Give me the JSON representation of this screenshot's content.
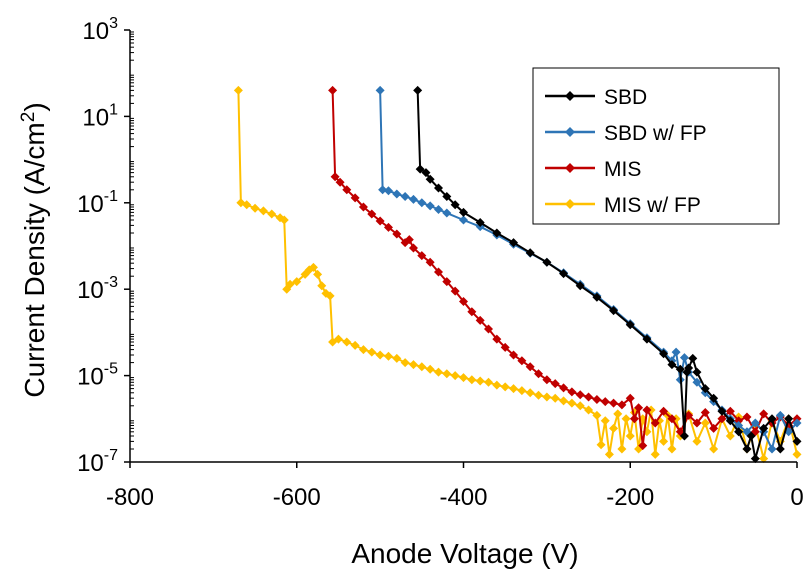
{
  "chart_data": {
    "type": "scatter",
    "xlabel": "Anode Voltage (V)",
    "ylabel": "Current Density (A/cm",
    "ylabel_sup": "2",
    "ylabel_close": ")",
    "xlim": [
      -800,
      0
    ],
    "ylim": [
      1e-07,
      1000
    ],
    "yscale": "log",
    "grid": false,
    "legend_position": "top-right",
    "x_ticks": [
      -800,
      -600,
      -400,
      -200,
      0
    ],
    "x_tick_labels": [
      "-800",
      "-600",
      "-400",
      "-200",
      "0"
    ],
    "y_ticks": [
      {
        "value": 1000.0,
        "base": "10",
        "exp": "3"
      },
      {
        "value": 10.0,
        "base": "10",
        "exp": "1"
      },
      {
        "value": 0.1,
        "base": "10",
        "exp": "-1"
      },
      {
        "value": 0.001,
        "base": "10",
        "exp": "-3"
      },
      {
        "value": 1e-05,
        "base": "10",
        "exp": "-5"
      },
      {
        "value": 1e-07,
        "base": "10",
        "exp": "-7"
      }
    ],
    "series": [
      {
        "name": "SBD",
        "color": "#000000",
        "points": [
          [
            -455,
            40
          ],
          [
            -452,
            0.6
          ],
          [
            -445,
            0.5
          ],
          [
            -440,
            0.35
          ],
          [
            -430,
            0.22
          ],
          [
            -420,
            0.14
          ],
          [
            -410,
            0.09
          ],
          [
            -400,
            0.06
          ],
          [
            -380,
            0.035
          ],
          [
            -360,
            0.02
          ],
          [
            -340,
            0.012
          ],
          [
            -320,
            0.007
          ],
          [
            -300,
            0.0042
          ],
          [
            -280,
            0.0023
          ],
          [
            -260,
            0.0012
          ],
          [
            -240,
            0.00065
          ],
          [
            -220,
            0.00032
          ],
          [
            -200,
            0.00015
          ],
          [
            -180,
            7e-05
          ],
          [
            -160,
            3.2e-05
          ],
          [
            -150,
            1.8e-05
          ],
          [
            -140,
            1.4e-05
          ],
          [
            -135,
            4e-07
          ],
          [
            -132,
            1.2e-05
          ],
          [
            -130,
            1.5e-05
          ],
          [
            -125,
            2.5e-05
          ],
          [
            -120,
            1.2e-05
          ],
          [
            -110,
            5e-06
          ],
          [
            -100,
            3e-06
          ],
          [
            -90,
            1.5e-06
          ],
          [
            -80,
            9e-07
          ],
          [
            -70,
            5e-07
          ],
          [
            -60,
            2e-07
          ],
          [
            -55,
            4e-07
          ],
          [
            -50,
            1.2e-07
          ],
          [
            -40,
            6e-07
          ],
          [
            -30,
            1e-06
          ],
          [
            -20,
            2e-07
          ],
          [
            -10,
            1e-06
          ],
          [
            0,
            3e-07
          ]
        ]
      },
      {
        "name": "SBD w/ FP",
        "color": "#2e75b6",
        "points": [
          [
            -500,
            40
          ],
          [
            -497,
            0.2
          ],
          [
            -490,
            0.19
          ],
          [
            -480,
            0.16
          ],
          [
            -470,
            0.14
          ],
          [
            -460,
            0.12
          ],
          [
            -450,
            0.1
          ],
          [
            -440,
            0.085
          ],
          [
            -430,
            0.07
          ],
          [
            -420,
            0.058
          ],
          [
            -400,
            0.04
          ],
          [
            -380,
            0.028
          ],
          [
            -360,
            0.018
          ],
          [
            -340,
            0.011
          ],
          [
            -320,
            0.0068
          ],
          [
            -300,
            0.0042
          ],
          [
            -280,
            0.0024
          ],
          [
            -260,
            0.0013
          ],
          [
            -240,
            0.0007
          ],
          [
            -220,
            0.00034
          ],
          [
            -200,
            0.00016
          ],
          [
            -180,
            7.5e-05
          ],
          [
            -160,
            3.5e-05
          ],
          [
            -150,
            2.2e-05
          ],
          [
            -145,
            3.5e-05
          ],
          [
            -140,
            8e-06
          ],
          [
            -135,
            2.6e-05
          ],
          [
            -130,
            1.2e-05
          ],
          [
            -120,
            7e-06
          ],
          [
            -110,
            4e-06
          ],
          [
            -100,
            2.5e-06
          ],
          [
            -90,
            1.6e-06
          ],
          [
            -80,
            1e-06
          ],
          [
            -70,
            7e-07
          ],
          [
            -60,
            5e-07
          ],
          [
            -50,
            8e-07
          ],
          [
            -40,
            5e-07
          ],
          [
            -30,
            2e-07
          ],
          [
            -20,
            1.2e-06
          ],
          [
            -10,
            5e-07
          ],
          [
            0,
            8e-07
          ]
        ]
      },
      {
        "name": "MIS",
        "color": "#c00000",
        "points": [
          [
            -557,
            40
          ],
          [
            -554,
            0.4
          ],
          [
            -548,
            0.3
          ],
          [
            -540,
            0.2
          ],
          [
            -530,
            0.13
          ],
          [
            -520,
            0.08
          ],
          [
            -510,
            0.055
          ],
          [
            -500,
            0.038
          ],
          [
            -490,
            0.027
          ],
          [
            -480,
            0.019
          ],
          [
            -470,
            0.012
          ],
          [
            -465,
            0.014
          ],
          [
            -460,
            0.009
          ],
          [
            -450,
            0.006
          ],
          [
            -440,
            0.0042
          ],
          [
            -430,
            0.0025
          ],
          [
            -420,
            0.0015
          ],
          [
            -410,
            0.0009
          ],
          [
            -400,
            0.00052
          ],
          [
            -390,
            0.0003
          ],
          [
            -380,
            0.00019
          ],
          [
            -370,
            0.00012
          ],
          [
            -360,
            7e-05
          ],
          [
            -350,
            4.5e-05
          ],
          [
            -340,
            3e-05
          ],
          [
            -330,
            2.2e-05
          ],
          [
            -320,
            1.6e-05
          ],
          [
            -310,
            1.1e-05
          ],
          [
            -300,
            8e-06
          ],
          [
            -290,
            6.5e-06
          ],
          [
            -280,
            5.2e-06
          ],
          [
            -270,
            4.2e-06
          ],
          [
            -260,
            3.6e-06
          ],
          [
            -250,
            3.2e-06
          ],
          [
            -240,
            2.8e-06
          ],
          [
            -230,
            2.5e-06
          ],
          [
            -220,
            2.3e-06
          ],
          [
            -210,
            2.1e-06
          ],
          [
            -200,
            3e-06
          ],
          [
            -195,
            1e-06
          ],
          [
            -190,
            1.8e-06
          ],
          [
            -185,
            2.4e-07
          ],
          [
            -180,
            1.6e-06
          ],
          [
            -170,
            8e-07
          ],
          [
            -160,
            1.5e-06
          ],
          [
            -150,
            1e-06
          ],
          [
            -140,
            5e-07
          ],
          [
            -130,
            1.2e-06
          ],
          [
            -120,
            8e-07
          ],
          [
            -110,
            1.4e-06
          ],
          [
            -100,
            6e-07
          ],
          [
            -90,
            1e-06
          ],
          [
            -80,
            1.5e-06
          ],
          [
            -70,
            9e-07
          ],
          [
            -60,
            1.1e-06
          ],
          [
            -50,
            5e-07
          ],
          [
            -40,
            1.3e-06
          ],
          [
            -30,
            8e-07
          ],
          [
            -20,
            1.1e-06
          ],
          [
            -10,
            7e-07
          ],
          [
            0,
            1e-06
          ]
        ]
      },
      {
        "name": "MIS w/ FP",
        "color": "#ffc000",
        "points": [
          [
            -670,
            40
          ],
          [
            -667,
            0.1
          ],
          [
            -660,
            0.09
          ],
          [
            -650,
            0.075
          ],
          [
            -640,
            0.065
          ],
          [
            -630,
            0.055
          ],
          [
            -620,
            0.045
          ],
          [
            -615,
            0.04
          ],
          [
            -612,
            0.001
          ],
          [
            -608,
            0.0013
          ],
          [
            -600,
            0.0015
          ],
          [
            -590,
            0.0022
          ],
          [
            -585,
            0.0028
          ],
          [
            -580,
            0.0032
          ],
          [
            -575,
            0.0022
          ],
          [
            -570,
            0.0012
          ],
          [
            -565,
            0.0008
          ],
          [
            -560,
            0.0007
          ],
          [
            -557,
            6e-05
          ],
          [
            -550,
            7e-05
          ],
          [
            -540,
            6e-05
          ],
          [
            -530,
            5e-05
          ],
          [
            -520,
            4e-05
          ],
          [
            -510,
            3.5e-05
          ],
          [
            -500,
            3e-05
          ],
          [
            -490,
            2.8e-05
          ],
          [
            -480,
            2.5e-05
          ],
          [
            -470,
            2e-05
          ],
          [
            -460,
            1.8e-05
          ],
          [
            -450,
            1.6e-05
          ],
          [
            -440,
            1.4e-05
          ],
          [
            -430,
            1.2e-05
          ],
          [
            -420,
            1.1e-05
          ],
          [
            -410,
            1e-05
          ],
          [
            -400,
            9e-06
          ],
          [
            -390,
            8e-06
          ],
          [
            -380,
            7.5e-06
          ],
          [
            -370,
            7e-06
          ],
          [
            -360,
            6e-06
          ],
          [
            -350,
            5.5e-06
          ],
          [
            -340,
            5e-06
          ],
          [
            -330,
            4.5e-06
          ],
          [
            -320,
            4e-06
          ],
          [
            -310,
            3.5e-06
          ],
          [
            -300,
            3.2e-06
          ],
          [
            -290,
            3e-06
          ],
          [
            -280,
            2.6e-06
          ],
          [
            -270,
            2.3e-06
          ],
          [
            -260,
            2e-06
          ],
          [
            -250,
            1.6e-06
          ],
          [
            -240,
            1.2e-06
          ],
          [
            -235,
            2.5e-07
          ],
          [
            -230,
            9e-07
          ],
          [
            -225,
            1.5e-07
          ],
          [
            -220,
            6e-07
          ],
          [
            -215,
            1.3e-06
          ],
          [
            -210,
            2e-07
          ],
          [
            -205,
            1e-06
          ],
          [
            -200,
            4e-07
          ],
          [
            -195,
            1.4e-06
          ],
          [
            -190,
            2e-07
          ],
          [
            -185,
            1e-06
          ],
          [
            -180,
            5e-07
          ],
          [
            -175,
            1.6e-06
          ],
          [
            -170,
            1.5e-07
          ],
          [
            -165,
            9e-07
          ],
          [
            -160,
            3e-07
          ],
          [
            -155,
            1.2e-06
          ],
          [
            -150,
            2e-07
          ],
          [
            -145,
            1e-06
          ],
          [
            -140,
            4e-07
          ],
          [
            -130,
            1.3e-06
          ],
          [
            -120,
            3e-07
          ],
          [
            -110,
            8e-07
          ],
          [
            -100,
            2e-07
          ],
          [
            -90,
            1e-06
          ],
          [
            -80,
            4e-07
          ],
          [
            -70,
            1.1e-06
          ],
          [
            -60,
            2e-07
          ],
          [
            -50,
            7e-07
          ],
          [
            -40,
            1.2e-07
          ],
          [
            -30,
            9e-07
          ],
          [
            -20,
            3e-07
          ],
          [
            -10,
            1e-06
          ],
          [
            0,
            1.5e-07
          ]
        ]
      }
    ]
  }
}
